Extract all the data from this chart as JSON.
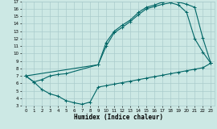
{
  "xlabel": "Humidex (Indice chaleur)",
  "bg_color": "#cce8e4",
  "grid_color": "#aacccc",
  "line_color": "#006666",
  "xlim": [
    -0.5,
    23.5
  ],
  "ylim": [
    3,
    17
  ],
  "xticks": [
    0,
    1,
    2,
    3,
    4,
    5,
    6,
    7,
    8,
    9,
    10,
    11,
    12,
    13,
    14,
    15,
    16,
    17,
    18,
    19,
    20,
    21,
    22,
    23
  ],
  "yticks": [
    3,
    4,
    5,
    6,
    7,
    8,
    9,
    10,
    11,
    12,
    13,
    14,
    15,
    16,
    17
  ],
  "line1_x": [
    0,
    1,
    2,
    3,
    4,
    5,
    6,
    7,
    8,
    9,
    10,
    11,
    12,
    13,
    14,
    15,
    16,
    17,
    18,
    19,
    20,
    21,
    22,
    23
  ],
  "line1_y": [
    7.0,
    6.2,
    5.2,
    4.6,
    4.3,
    3.7,
    3.4,
    3.2,
    3.5,
    5.5,
    5.7,
    5.9,
    6.1,
    6.3,
    6.5,
    6.7,
    6.9,
    7.1,
    7.3,
    7.5,
    7.7,
    7.9,
    8.1,
    8.7
  ],
  "line2_x": [
    0,
    1,
    2,
    3,
    4,
    5,
    9,
    10,
    11,
    12,
    13,
    14,
    15,
    16,
    17,
    18,
    19,
    20,
    21,
    22,
    23
  ],
  "line2_y": [
    7.0,
    6.2,
    6.5,
    7.0,
    7.2,
    7.3,
    8.5,
    11.0,
    12.8,
    13.5,
    14.3,
    15.2,
    16.0,
    16.3,
    16.6,
    16.8,
    16.5,
    15.5,
    12.0,
    10.2,
    8.7
  ],
  "line3_x": [
    0,
    9,
    10,
    11,
    12,
    13,
    14,
    15,
    16,
    17,
    18,
    19,
    20,
    21,
    22,
    23
  ],
  "line3_y": [
    7.0,
    8.5,
    11.5,
    13.0,
    13.8,
    14.5,
    15.5,
    16.2,
    16.5,
    16.9,
    17.0,
    16.9,
    16.6,
    16.2,
    12.1,
    8.7
  ]
}
